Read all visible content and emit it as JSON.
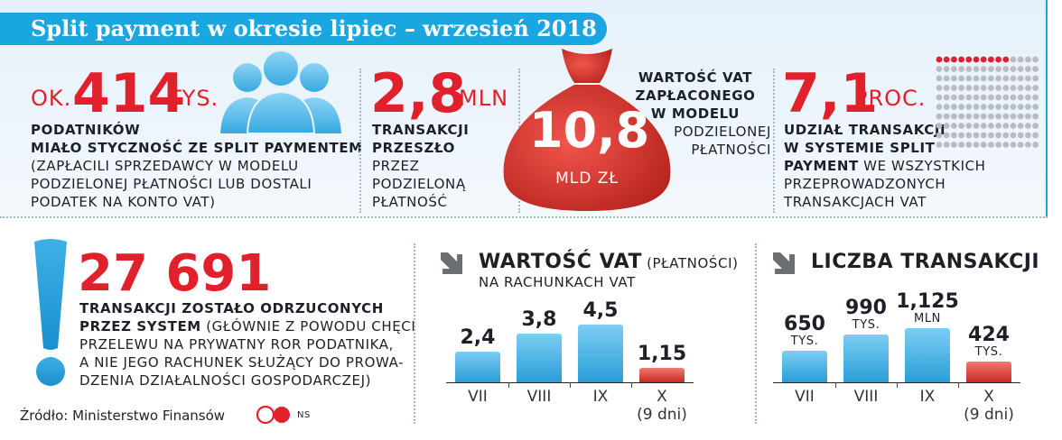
{
  "title": "Split payment w okresie lipiec – wrzesień 2018",
  "stat1": {
    "prefix": "ok.",
    "number": "414",
    "unit": "tys.",
    "bold_text_1": "podatników",
    "bold_text_2": "miało styczność ze split paymentem",
    "normal_1": "(zapłacili sprzedawcy w modelu",
    "normal_2": "podzielonej płatności lub dostali",
    "normal_3": "podatek na konto VAT)"
  },
  "stat2": {
    "number": "2,8",
    "unit": "mln",
    "bold_1": "transakcji",
    "bold_2": "przeszło",
    "normal_1": "przez",
    "normal_2": "podzieloną",
    "normal_3": "płatność"
  },
  "stat3": {
    "number": "10,8",
    "unit": "mld zł",
    "bold_1": "Wartość VAT",
    "bold_2": "zapłaconego",
    "bold_3": "w modelu",
    "normal_1": "podzielonej",
    "normal_2": "płatności"
  },
  "stat4": {
    "number": "7,1",
    "unit": "proc.",
    "bold_1": "udział transakcji",
    "bold_2": "w systemie split",
    "bold_3": "payment",
    "normal_3": " we wszystkich",
    "normal_4": "przeprowadzonych",
    "normal_5": "transakcjach VAT",
    "dot_share": 0.071
  },
  "stat5": {
    "number": "27 691",
    "bold_1": "transakcji zostało odrzuconych",
    "bold_2": "przez system",
    "normal_2": " (głównie z powodu chęci",
    "normal_3": "przelewu na prywatny ROR podatnika,",
    "normal_4": "a nie jego rachunek służący do prowa-",
    "normal_5": "dzenia działalności gospodarczej)"
  },
  "source": "Źródło: Ministerstwo Finansów",
  "logo": "CP",
  "initials": "NS",
  "colors": {
    "accent": "#1aa6e0",
    "red": "#e0202a",
    "bar_blue": "#2a9ed8",
    "bar_red": "#c72a22"
  },
  "chart_data": [
    {
      "type": "bar",
      "title": "Wartość VAT",
      "title_note": "(płatności)",
      "subtitle": "na rachunkach VAT",
      "categories": [
        "VII",
        "VIII",
        "IX",
        "X"
      ],
      "category_notes": [
        "",
        "",
        "",
        "(9 dni)"
      ],
      "values": [
        2.4,
        3.8,
        4.5,
        1.15
      ],
      "value_labels": [
        "2,4",
        "3,8",
        "4,5",
        "1,15"
      ],
      "highlight": [
        false,
        false,
        false,
        true
      ]
    },
    {
      "type": "bar",
      "title": "Liczba transakcji",
      "categories": [
        "VII",
        "VIII",
        "IX",
        "X"
      ],
      "category_notes": [
        "",
        "",
        "",
        "(9 dni)"
      ],
      "values": [
        650000,
        990000,
        1125000,
        424000
      ],
      "value_labels": [
        "650",
        "990",
        "1,125",
        "424"
      ],
      "value_units": [
        "tys.",
        "tys.",
        "mln",
        "tys."
      ],
      "highlight": [
        false,
        false,
        false,
        true
      ]
    }
  ]
}
